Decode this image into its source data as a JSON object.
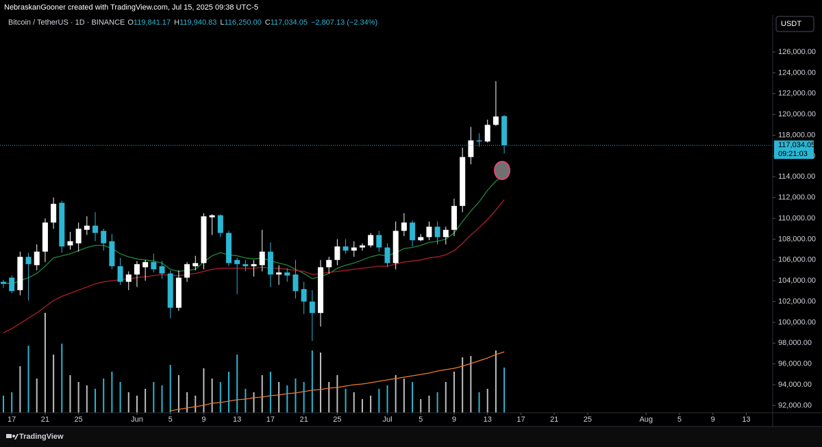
{
  "header": {
    "text": "NebraskanGooner created with TradingView.com, Jul 15, 2025 09:38 UTC-5"
  },
  "chart_data": {
    "type": "candlestick",
    "title": "Bitcoin / TetherUS · 1D · BINANCE",
    "legend": [
      {
        "key": "O",
        "value": "119,841.17"
      },
      {
        "key": "H",
        "value": "119,940.83"
      },
      {
        "key": "L",
        "value": "116,250.00"
      },
      {
        "key": "C",
        "value": "117,034.05"
      }
    ],
    "change": "−2,807.13 (−2.34%)",
    "currency": "USDT",
    "last_price_label": "117,034.05",
    "countdown": "09:21:03",
    "up_color": "#ffffff",
    "down_color": "#2cb6d3",
    "x": [
      "2025-05-16",
      "2025-05-17",
      "2025-05-18",
      "2025-05-19",
      "2025-05-20",
      "2025-05-21",
      "2025-05-22",
      "2025-05-23",
      "2025-05-24",
      "2025-05-25",
      "2025-05-26",
      "2025-05-27",
      "2025-05-28",
      "2025-05-29",
      "2025-05-30",
      "2025-05-31",
      "2025-06-01",
      "2025-06-02",
      "2025-06-03",
      "2025-06-04",
      "2025-06-05",
      "2025-06-06",
      "2025-06-07",
      "2025-06-08",
      "2025-06-09",
      "2025-06-10",
      "2025-06-11",
      "2025-06-12",
      "2025-06-13",
      "2025-06-14",
      "2025-06-15",
      "2025-06-16",
      "2025-06-17",
      "2025-06-18",
      "2025-06-19",
      "2025-06-20",
      "2025-06-21",
      "2025-06-22",
      "2025-06-23",
      "2025-06-24",
      "2025-06-25",
      "2025-06-26",
      "2025-06-27",
      "2025-06-28",
      "2025-06-29",
      "2025-06-30",
      "2025-07-01",
      "2025-07-02",
      "2025-07-03",
      "2025-07-04",
      "2025-07-05",
      "2025-07-06",
      "2025-07-07",
      "2025-07-08",
      "2025-07-09",
      "2025-07-10",
      "2025-07-11",
      "2025-07-12",
      "2025-07-13",
      "2025-07-14",
      "2025-07-15"
    ],
    "open": [
      103900,
      104300,
      103100,
      106300,
      105500,
      106800,
      109600,
      111500,
      107400,
      107600,
      108900,
      109300,
      108800,
      107800,
      105400,
      103900,
      104600,
      105300,
      105800,
      105400,
      104700,
      101400,
      104300,
      105400,
      105700,
      110100,
      110300,
      108600,
      106000,
      105600,
      105400,
      105500,
      106800,
      104600,
      104800,
      104600,
      103200,
      102000,
      100900,
      105300,
      106000,
      107300,
      106900,
      107200,
      107400,
      108400,
      107200,
      105700,
      108800,
      109600,
      107900,
      108200,
      109200,
      108200,
      108900,
      111200,
      115900,
      117500,
      117400,
      119000,
      119841.17
    ],
    "high": [
      104100,
      104500,
      106800,
      106700,
      107500,
      110000,
      112000,
      111700,
      108700,
      109600,
      110200,
      110600,
      109000,
      108500,
      106200,
      104900,
      105900,
      106000,
      106600,
      105900,
      105000,
      105000,
      105800,
      106400,
      110500,
      110400,
      110400,
      108800,
      106200,
      106000,
      106000,
      108900,
      107700,
      105500,
      105200,
      106000,
      103900,
      103100,
      106000,
      106300,
      108000,
      108000,
      107800,
      107600,
      108600,
      108800,
      107600,
      109700,
      110500,
      109800,
      108500,
      109700,
      109700,
      109200,
      111900,
      116800,
      118800,
      118200,
      119500,
      123200,
      119940.83
    ],
    "low": [
      103300,
      102800,
      102600,
      102100,
      105000,
      105800,
      109000,
      106700,
      107000,
      106800,
      108400,
      107800,
      106900,
      105100,
      103600,
      103100,
      103400,
      104000,
      104800,
      104200,
      100400,
      101100,
      103900,
      105000,
      105100,
      108400,
      108200,
      105400,
      102700,
      104900,
      104400,
      104900,
      103400,
      103600,
      103900,
      102300,
      100800,
      98200,
      99600,
      104700,
      105500,
      106600,
      106300,
      106900,
      107200,
      106800,
      105300,
      105100,
      108300,
      107300,
      107800,
      107900,
      107500,
      107500,
      108300,
      110600,
      115200,
      116900,
      117300,
      118900,
      116250
    ],
    "close": [
      103700,
      103000,
      106300,
      105600,
      106800,
      109600,
      111400,
      107300,
      107800,
      109000,
      109300,
      108600,
      107600,
      105400,
      103900,
      104600,
      105600,
      105800,
      105100,
      104700,
      101400,
      104300,
      105600,
      105700,
      110200,
      110300,
      108600,
      105700,
      105600,
      105400,
      105600,
      106800,
      104600,
      104800,
      104500,
      103000,
      102000,
      100900,
      105300,
      106000,
      107300,
      106900,
      107200,
      107400,
      108400,
      107200,
      105700,
      108800,
      109600,
      107900,
      108200,
      109200,
      108200,
      108900,
      111200,
      115900,
      117500,
      117400,
      119000,
      119800,
      117034.05
    ],
    "volume": {
      "values": [
        25,
        30,
        68,
        98,
        50,
        146,
        85,
        101,
        55,
        45,
        40,
        35,
        50,
        60,
        45,
        30,
        25,
        35,
        45,
        40,
        70,
        55,
        30,
        25,
        65,
        50,
        45,
        60,
        85,
        35,
        30,
        55,
        60,
        45,
        40,
        50,
        45,
        91,
        88,
        45,
        55,
        35,
        30,
        20,
        25,
        35,
        40,
        55,
        50,
        45,
        20,
        25,
        30,
        45,
        60,
        81,
        83,
        30,
        35,
        91,
        66
      ],
      "ylim": [
        0,
        200
      ],
      "ma": {
        "color": "#f07b2c",
        "values": [
          null,
          null,
          null,
          null,
          null,
          null,
          null,
          null,
          null,
          null,
          null,
          null,
          null,
          null,
          null,
          null,
          null,
          null,
          null,
          null,
          3,
          5,
          7,
          9,
          11,
          14,
          15,
          17,
          19,
          20,
          22,
          23,
          25,
          26,
          28,
          29,
          31,
          33,
          34,
          36,
          37,
          39,
          41,
          42,
          44,
          46,
          48,
          50,
          52,
          54,
          56,
          58,
          61,
          63,
          65,
          68,
          72,
          76,
          80,
          85,
          89
        ]
      }
    },
    "lines": [
      {
        "color": "#1e8a3a",
        "values": [
          103800,
          103700,
          104000,
          104300,
          104700,
          105400,
          106200,
          106400,
          106600,
          106900,
          107200,
          107400,
          107400,
          107100,
          106600,
          106300,
          106100,
          106000,
          105900,
          105700,
          105100,
          104900,
          105000,
          105100,
          105800,
          106400,
          106700,
          106500,
          106400,
          106200,
          106100,
          106200,
          105900,
          105700,
          105500,
          105100,
          104700,
          104200,
          104400,
          104700,
          105200,
          105500,
          105700,
          106000,
          106300,
          106500,
          106400,
          106700,
          107100,
          107200,
          107400,
          107700,
          107800,
          108000,
          108600,
          109700,
          110700,
          111600,
          112700,
          113600,
          114100
        ]
      },
      {
        "color": "#b0202a",
        "values": [
          99000,
          99400,
          99900,
          100400,
          100900,
          101500,
          102100,
          102500,
          102800,
          103100,
          103400,
          103700,
          103900,
          104000,
          104100,
          104200,
          104300,
          104400,
          104500,
          104600,
          104500,
          104500,
          104600,
          104700,
          104900,
          105100,
          105200,
          105200,
          105200,
          105200,
          105200,
          105300,
          105200,
          105200,
          105100,
          105000,
          104900,
          104600,
          104700,
          104800,
          104900,
          105000,
          105100,
          105200,
          105300,
          105400,
          105400,
          105600,
          105800,
          105900,
          106000,
          106200,
          106300,
          106500,
          106900,
          107600,
          108400,
          109100,
          109900,
          110800,
          111800
        ]
      }
    ],
    "ylim": [
      91300,
      129560
    ],
    "yticks": [
      {
        "value": 92000,
        "label": "92,000.00"
      },
      {
        "value": 94000,
        "label": "94,000.00"
      },
      {
        "value": 96000,
        "label": "96,000.00"
      },
      {
        "value": 98000,
        "label": "98,000.00"
      },
      {
        "value": 100000,
        "label": "100,000.00"
      },
      {
        "value": 102000,
        "label": "102,000.00"
      },
      {
        "value": 104000,
        "label": "104,000.00"
      },
      {
        "value": 106000,
        "label": "106,000.00"
      },
      {
        "value": 108000,
        "label": "108,000.00"
      },
      {
        "value": 110000,
        "label": "110,000.00"
      },
      {
        "value": 112000,
        "label": "112,000.00"
      },
      {
        "value": 114000,
        "label": "114,000.00"
      },
      {
        "value": 116000,
        "label": "116,000.00"
      },
      {
        "value": 118000,
        "label": "118,000.00"
      },
      {
        "value": 120000,
        "label": "120,000.00"
      },
      {
        "value": 122000,
        "label": "122,000.00"
      },
      {
        "value": 124000,
        "label": "124,000.00"
      },
      {
        "value": 126000,
        "label": "126,000.00"
      }
    ],
    "xlim": [
      "2025-05-16",
      "2025-08-16"
    ],
    "xticks": [
      {
        "value": "2025-05-17",
        "label": "17"
      },
      {
        "value": "2025-05-21",
        "label": "21"
      },
      {
        "value": "2025-05-25",
        "label": "25"
      },
      {
        "value": "2025-06-01",
        "label": "Jun"
      },
      {
        "value": "2025-06-05",
        "label": "5"
      },
      {
        "value": "2025-06-09",
        "label": "9"
      },
      {
        "value": "2025-06-13",
        "label": "13"
      },
      {
        "value": "2025-06-17",
        "label": "17"
      },
      {
        "value": "2025-06-21",
        "label": "21"
      },
      {
        "value": "2025-06-25",
        "label": "25"
      },
      {
        "value": "2025-07-01",
        "label": "Jul"
      },
      {
        "value": "2025-07-05",
        "label": "5"
      },
      {
        "value": "2025-07-09",
        "label": "9"
      },
      {
        "value": "2025-07-13",
        "label": "13"
      },
      {
        "value": "2025-07-17",
        "label": "17"
      },
      {
        "value": "2025-07-21",
        "label": "21"
      },
      {
        "value": "2025-07-25",
        "label": "25"
      },
      {
        "value": "2025-08-01",
        "label": "Aug"
      },
      {
        "value": "2025-08-05",
        "label": "5"
      },
      {
        "value": "2025-08-09",
        "label": "9"
      },
      {
        "value": "2025-08-13",
        "label": "13"
      }
    ]
  },
  "footer": {
    "brand": "TradingView"
  }
}
